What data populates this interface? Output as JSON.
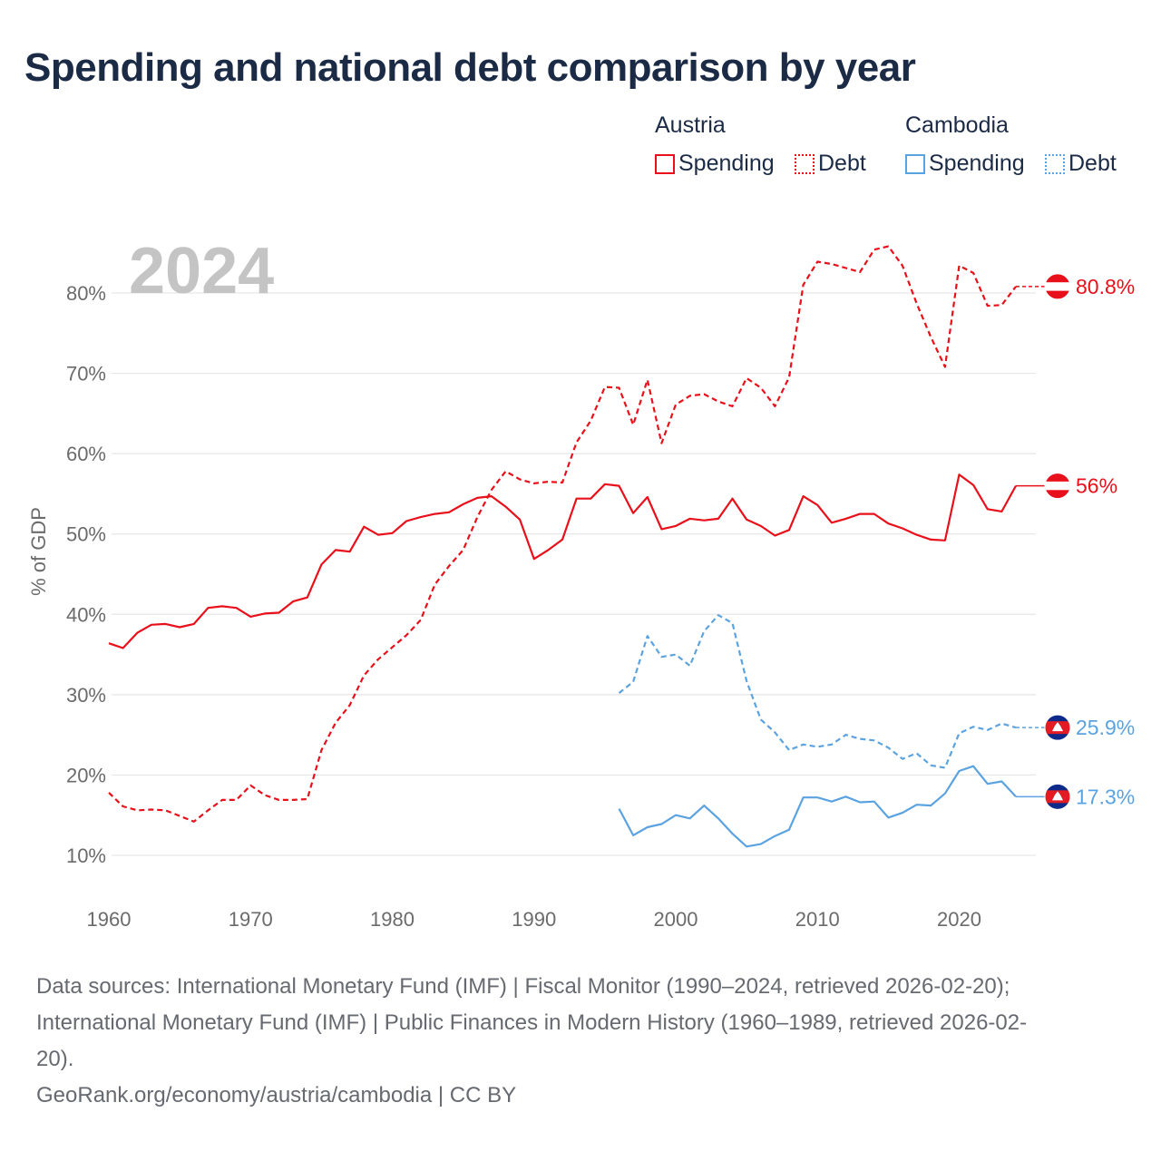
{
  "title": "Spending and national debt comparison by year",
  "legend": {
    "groups": [
      {
        "country": "Austria",
        "color": "#e8101a",
        "items": [
          {
            "label": "Spending",
            "style": "solid"
          },
          {
            "label": "Debt",
            "style": "dotted"
          }
        ]
      },
      {
        "country": "Cambodia",
        "color": "#5ba3e0",
        "items": [
          {
            "label": "Spending",
            "style": "solid"
          },
          {
            "label": "Debt",
            "style": "dotted"
          }
        ]
      }
    ]
  },
  "year_label": "2024",
  "footer": {
    "sources_line1": "Data sources: International Monetary Fund (IMF) | Fiscal Monitor (1990–2024, retrieved 2026-02-20);",
    "sources_line2": "International Monetary Fund (IMF) | Public Finances in Modern History (1960–1989, retrieved 2026-02-",
    "sources_line3": "20).",
    "credit": "GeoRank.org/economy/austria/cambodia | CC BY"
  },
  "chart_data": {
    "type": "line",
    "title": "Spending and national debt comparison by year",
    "xlabel": "",
    "ylabel": "% of GDP",
    "xlim": [
      1960,
      2024
    ],
    "ylim": [
      10,
      85
    ],
    "x_ticks": [
      1960,
      1970,
      1980,
      1990,
      2000,
      2010,
      2020
    ],
    "y_ticks": [
      10,
      20,
      30,
      40,
      50,
      60,
      70,
      80
    ],
    "y_tick_labels": [
      "10%",
      "20%",
      "30%",
      "40%",
      "50%",
      "60%",
      "70%",
      "80%"
    ],
    "grid": true,
    "series": [
      {
        "name": "Austria Spending",
        "color": "#e8101a",
        "style": "solid",
        "end_label": "56%",
        "flag": "austria",
        "x": [
          1960,
          1961,
          1962,
          1963,
          1964,
          1965,
          1966,
          1967,
          1968,
          1969,
          1970,
          1971,
          1972,
          1973,
          1974,
          1975,
          1976,
          1977,
          1978,
          1979,
          1980,
          1981,
          1982,
          1983,
          1984,
          1985,
          1986,
          1987,
          1988,
          1989,
          1990,
          1991,
          1992,
          1993,
          1994,
          1995,
          1996,
          1997,
          1998,
          1999,
          2000,
          2001,
          2002,
          2003,
          2004,
          2005,
          2006,
          2007,
          2008,
          2009,
          2010,
          2011,
          2012,
          2013,
          2014,
          2015,
          2016,
          2017,
          2018,
          2019,
          2020,
          2021,
          2022,
          2023,
          2024
        ],
        "values": [
          36.4,
          35.8,
          37.7,
          38.7,
          38.8,
          38.4,
          38.8,
          40.8,
          41.0,
          40.8,
          39.7,
          40.1,
          40.2,
          41.6,
          42.1,
          46.2,
          48.0,
          47.8,
          50.9,
          49.9,
          50.1,
          51.6,
          52.1,
          52.5,
          52.7,
          53.7,
          54.5,
          54.7,
          53.4,
          51.8,
          46.9,
          48.0,
          49.3,
          54.4,
          54.4,
          56.2,
          56.0,
          52.6,
          54.6,
          50.6,
          51.0,
          51.9,
          51.7,
          51.9,
          54.4,
          51.8,
          51.0,
          49.8,
          50.5,
          54.7,
          53.6,
          51.4,
          51.9,
          52.5,
          52.5,
          51.3,
          50.7,
          49.9,
          49.3,
          49.2,
          57.4,
          56.1,
          53.1,
          52.8,
          56.0
        ]
      },
      {
        "name": "Austria Debt",
        "color": "#e8101a",
        "style": "dashed",
        "end_label": "80.8%",
        "flag": "austria",
        "x": [
          1960,
          1961,
          1962,
          1963,
          1964,
          1965,
          1966,
          1967,
          1968,
          1969,
          1970,
          1971,
          1972,
          1973,
          1974,
          1975,
          1976,
          1977,
          1978,
          1979,
          1980,
          1981,
          1982,
          1983,
          1984,
          1985,
          1986,
          1987,
          1988,
          1989,
          1990,
          1991,
          1992,
          1993,
          1994,
          1995,
          1996,
          1997,
          1998,
          1999,
          2000,
          2001,
          2002,
          2003,
          2004,
          2005,
          2006,
          2007,
          2008,
          2009,
          2010,
          2011,
          2012,
          2013,
          2014,
          2015,
          2016,
          2017,
          2018,
          2019,
          2020,
          2021,
          2022,
          2023,
          2024
        ],
        "values": [
          17.8,
          16.1,
          15.6,
          15.7,
          15.6,
          14.9,
          14.2,
          15.6,
          16.9,
          16.9,
          18.7,
          17.5,
          16.9,
          16.9,
          17.0,
          23.1,
          26.5,
          28.7,
          32.4,
          34.4,
          35.9,
          37.4,
          39.3,
          43.7,
          46.0,
          48.0,
          52.1,
          55.5,
          57.8,
          56.8,
          56.3,
          56.5,
          56.4,
          61.4,
          64.1,
          68.3,
          68.2,
          63.6,
          69.2,
          61.3,
          66.1,
          67.2,
          67.4,
          66.5,
          65.9,
          69.4,
          68.2,
          65.9,
          69.5,
          81.0,
          83.9,
          83.6,
          83.1,
          82.6,
          85.4,
          85.8,
          83.4,
          78.7,
          74.5,
          70.8,
          83.4,
          82.5,
          78.4,
          78.5,
          80.8
        ]
      },
      {
        "name": "Cambodia Spending",
        "color": "#5ba3e0",
        "style": "solid",
        "end_label": "17.3%",
        "flag": "cambodia",
        "x": [
          1996,
          1997,
          1998,
          1999,
          2000,
          2001,
          2002,
          2003,
          2004,
          2005,
          2006,
          2007,
          2008,
          2009,
          2010,
          2011,
          2012,
          2013,
          2014,
          2015,
          2016,
          2017,
          2018,
          2019,
          2020,
          2021,
          2022,
          2023,
          2024
        ],
        "values": [
          15.8,
          12.5,
          13.5,
          13.9,
          15.0,
          14.6,
          16.2,
          14.6,
          12.7,
          11.1,
          11.4,
          12.4,
          13.2,
          17.2,
          17.2,
          16.7,
          17.3,
          16.6,
          16.7,
          14.7,
          15.3,
          16.3,
          16.2,
          17.7,
          20.5,
          21.1,
          18.9,
          19.2,
          17.3
        ]
      },
      {
        "name": "Cambodia Debt",
        "color": "#5ba3e0",
        "style": "dashed",
        "end_label": "25.9%",
        "flag": "cambodia",
        "x": [
          1996,
          1997,
          1998,
          1999,
          2000,
          2001,
          2002,
          2003,
          2004,
          2005,
          2006,
          2007,
          2008,
          2009,
          2010,
          2011,
          2012,
          2013,
          2014,
          2015,
          2016,
          2017,
          2018,
          2019,
          2020,
          2021,
          2022,
          2023,
          2024
        ],
        "values": [
          30.2,
          31.6,
          37.3,
          34.7,
          35.0,
          33.6,
          37.9,
          39.9,
          38.9,
          31.7,
          26.9,
          25.3,
          23.1,
          23.8,
          23.5,
          23.8,
          25.0,
          24.5,
          24.3,
          23.4,
          22.0,
          22.7,
          21.2,
          20.9,
          25.2,
          26.0,
          25.6,
          26.4,
          25.9
        ]
      }
    ]
  }
}
